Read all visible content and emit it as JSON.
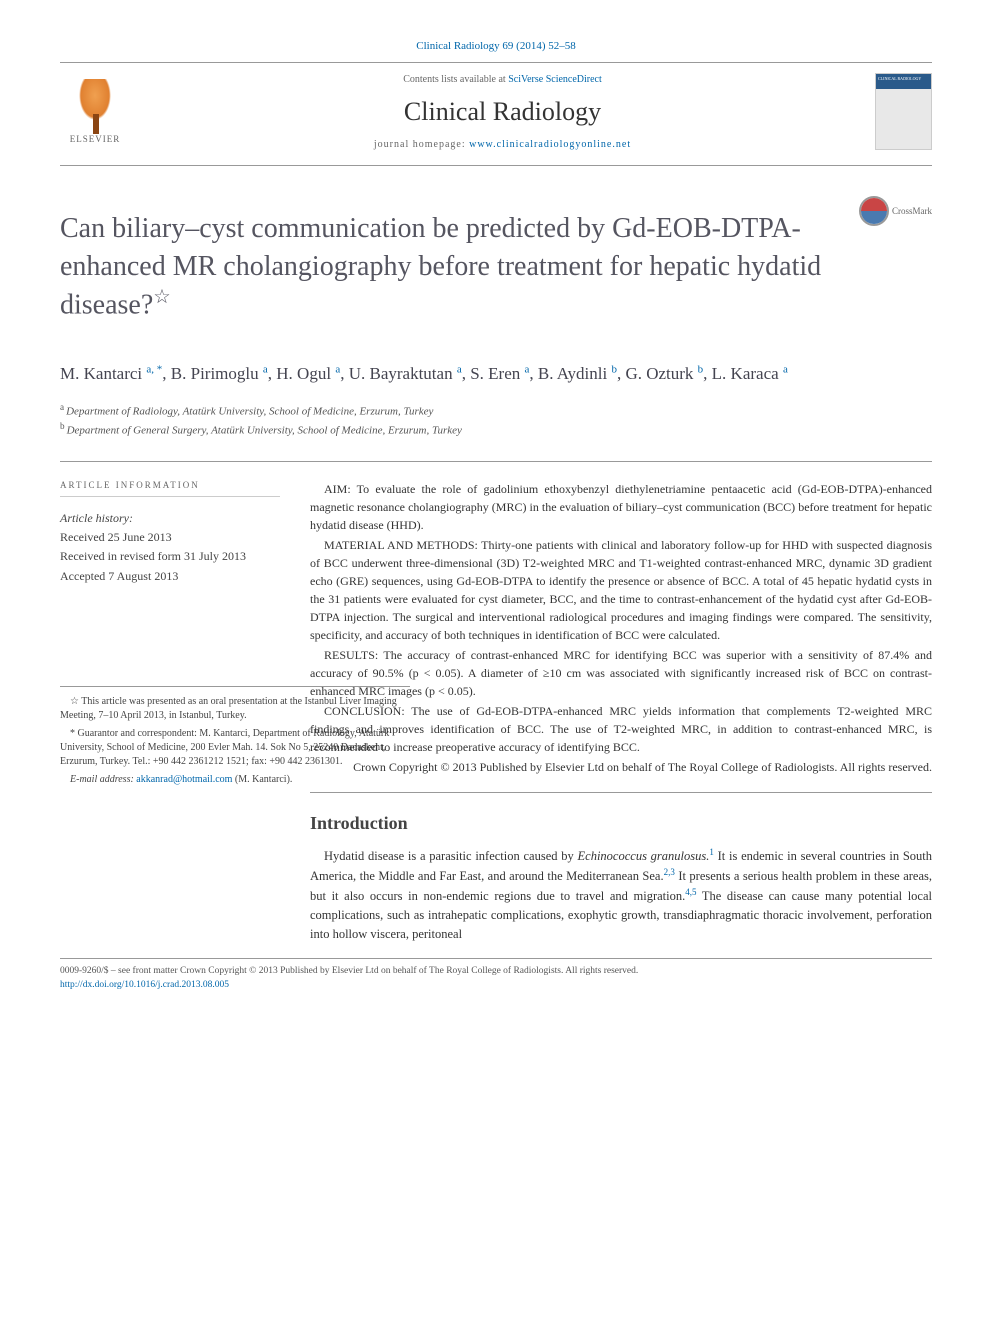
{
  "citation": "Clinical Radiology 69 (2014) 52–58",
  "header": {
    "contents_prefix": "Contents lists available at ",
    "sciverse": "SciVerse ScienceDirect",
    "journal_name": "Clinical Radiology",
    "homepage_prefix": "journal homepage: ",
    "homepage_url": "www.clinicalradiologyonline.net",
    "elsevier_label": "ELSEVIER"
  },
  "crossmark_label": "CrossMark",
  "title": "Can biliary–cyst communication be predicted by Gd-EOB-DTPA-enhanced MR cholangiography before treatment for hepatic hydatid disease?",
  "title_star": "☆",
  "authors_html": "M. Kantarci <sup>a,</sup>*, B. Pirimoglu <sup>a</sup>, H. Ogul <sup>a</sup>, U. Bayraktutan <sup>a</sup>, S. Eren <sup>a</sup>, B. Aydinli <sup>b</sup>, G. Ozturk <sup>b</sup>, L. Karaca <sup>a</sup>",
  "authors": [
    {
      "name": "M. Kantarci",
      "aff": "a",
      "corr": true
    },
    {
      "name": "B. Pirimoglu",
      "aff": "a"
    },
    {
      "name": "H. Ogul",
      "aff": "a"
    },
    {
      "name": "U. Bayraktutan",
      "aff": "a"
    },
    {
      "name": "S. Eren",
      "aff": "a"
    },
    {
      "name": "B. Aydinli",
      "aff": "b"
    },
    {
      "name": "G. Ozturk",
      "aff": "b"
    },
    {
      "name": "L. Karaca",
      "aff": "a"
    }
  ],
  "affiliations": {
    "a": "Department of Radiology, Atatürk University, School of Medicine, Erzurum, Turkey",
    "b": "Department of General Surgery, Atatürk University, School of Medicine, Erzurum, Turkey"
  },
  "article_info": {
    "header": "ARTICLE INFORMATION",
    "history_label": "Article history:",
    "received": "Received 25 June 2013",
    "revised": "Received in revised form 31 July 2013",
    "accepted": "Accepted 7 August 2013"
  },
  "abstract": {
    "aim": "AIM: To evaluate the role of gadolinium ethoxybenzyl diethylenetriamine pentaacetic acid (Gd-EOB-DTPA)-enhanced magnetic resonance cholangiography (MRC) in the evaluation of biliary–cyst communication (BCC) before treatment for hepatic hydatid disease (HHD).",
    "methods": "MATERIAL AND METHODS: Thirty-one patients with clinical and laboratory follow-up for HHD with suspected diagnosis of BCC underwent three-dimensional (3D) T2-weighted MRC and T1-weighted contrast-enhanced MRC, dynamic 3D gradient echo (GRE) sequences, using Gd-EOB-DTPA to identify the presence or absence of BCC. A total of 45 hepatic hydatid cysts in the 31 patients were evaluated for cyst diameter, BCC, and the time to contrast-enhancement of the hydatid cyst after Gd-EOB-DTPA injection. The surgical and interventional radiological procedures and imaging findings were compared. The sensitivity, specificity, and accuracy of both techniques in identification of BCC were calculated.",
    "results": "RESULTS: The accuracy of contrast-enhanced MRC for identifying BCC was superior with a sensitivity of 87.4% and accuracy of 90.5% (p < 0.05). A diameter of ≥10 cm was associated with significantly increased risk of BCC on contrast-enhanced MRC images (p < 0.05).",
    "conclusion": "CONCLUSION: The use of Gd-EOB-DTPA-enhanced MRC yields information that complements T2-weighted MRC findings and improves identification of BCC. The use of T2-weighted MRC, in addition to contrast-enhanced MRC, is recommended to increase preoperative accuracy of identifying BCC.",
    "copyright": "Crown Copyright © 2013 Published by Elsevier Ltd on behalf of The Royal College of Radiologists. All rights reserved."
  },
  "intro": {
    "heading": "Introduction",
    "p1_pre": "Hydatid disease is a parasitic infection caused by ",
    "p1_italic": "Echinococcus granulosus.",
    "p1_post": " It is endemic in several countries in South America, the Middle and Far East, and around the Mediterranean Sea.",
    "p1_post2": " It presents a serious health problem in these areas, but it also occurs in non-endemic regions due to travel and migration.",
    "p1_post3": " The disease can cause many potential local complications, such as intrahepatic complications, exophytic growth, transdiaphragmatic thoracic involvement, perforation into hollow viscera, peritoneal",
    "ref1": "1",
    "ref23": "2,3",
    "ref45": "4,5"
  },
  "footnotes": {
    "star": "☆ This article was presented as an oral presentation at the Istanbul Liver Imaging Meeting, 7–10 April 2013, in Istanbul, Turkey.",
    "corr": "* Guarantor and correspondent: M. Kantarci, Department of Radiology, Atatürk University, School of Medicine, 200 Evler Mah. 14. Sok No 5, 25240 Dadaskent, Erzurum, Turkey. Tel.: +90 442 2361212 1521; fax: +90 442 2361301.",
    "email_label": "E-mail address: ",
    "email": "akkanrad@hotmail.com",
    "email_suffix": " (M. Kantarci)."
  },
  "bottom": {
    "issn": "0009-9260/$ – see front matter Crown Copyright © 2013 Published by Elsevier Ltd on behalf of The Royal College of Radiologists. All rights reserved.",
    "doi": "http://dx.doi.org/10.1016/j.crad.2013.08.005"
  },
  "colors": {
    "link": "#0066aa",
    "text": "#333333",
    "muted": "#666666",
    "rule": "#999999"
  }
}
